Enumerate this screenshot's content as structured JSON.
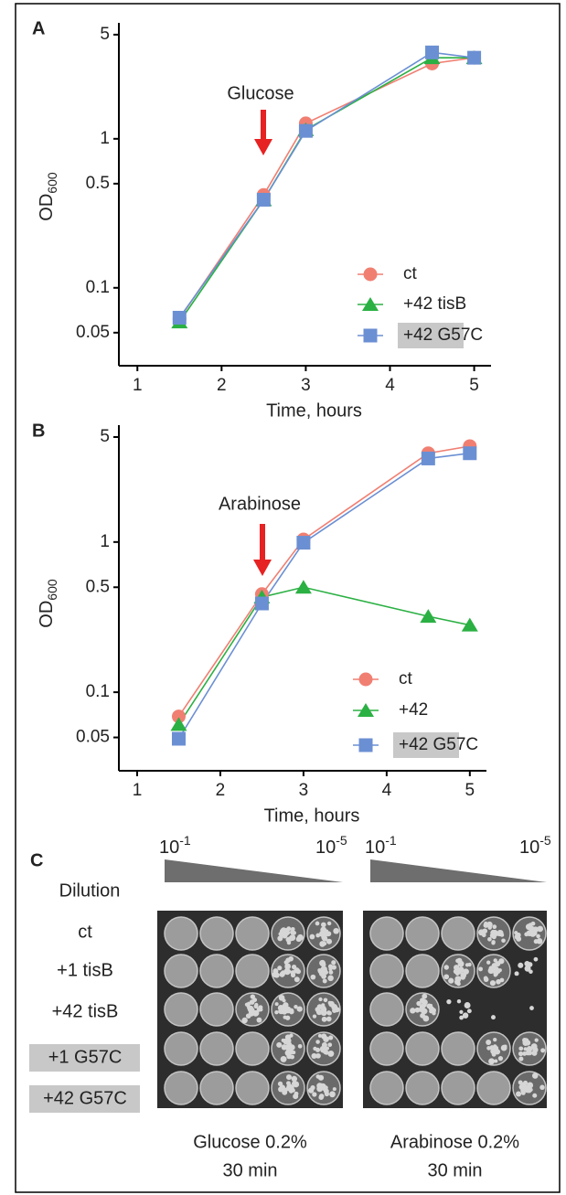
{
  "chart_data": [
    {
      "type": "line",
      "panel_label": "A",
      "annotation": "Glucose",
      "ylabel": {
        "text": "OD",
        "subscript": "600"
      },
      "xlabel": "Time, hours",
      "yscale": "log",
      "ylim": [
        0.03,
        6
      ],
      "yticks": [
        0.05,
        0.1,
        0.5,
        1,
        5
      ],
      "xlim": [
        0.78,
        5.2
      ],
      "xticks": [
        1,
        2,
        3,
        4,
        5
      ],
      "legend": "lower right",
      "series": [
        {
          "name": "ct",
          "color": "#f07f72",
          "marker": "circle",
          "x": [
            1.5,
            2.5,
            3,
            4.5,
            5
          ],
          "values": [
            0.062,
            0.42,
            1.27,
            3.2,
            3.5
          ]
        },
        {
          "name": "+42 tisB",
          "color": "#2bb043",
          "marker": "triangle",
          "x": [
            1.5,
            2.5,
            3,
            4.5,
            5
          ],
          "values": [
            0.059,
            0.39,
            1.15,
            3.5,
            3.5
          ]
        },
        {
          "name": "+42 G57C",
          "color": "#6b8fd3",
          "marker": "square",
          "highlight": true,
          "x": [
            1.5,
            2.5,
            3,
            4.5,
            5
          ],
          "values": [
            0.063,
            0.39,
            1.13,
            3.8,
            3.5
          ]
        }
      ]
    },
    {
      "type": "line",
      "panel_label": "B",
      "annotation": "Arabinose",
      "ylabel": {
        "text": "OD",
        "subscript": "600"
      },
      "xlabel": "Time, hours",
      "yscale": "log",
      "ylim": [
        0.03,
        6
      ],
      "yticks": [
        0.05,
        0.1,
        0.5,
        1,
        5
      ],
      "xlim": [
        0.78,
        5.2
      ],
      "xticks": [
        1,
        2,
        3,
        4,
        5
      ],
      "legend": "lower right",
      "series": [
        {
          "name": "ct",
          "color": "#f07f72",
          "marker": "circle",
          "x": [
            1.5,
            2.5,
            3,
            4.5,
            5
          ],
          "values": [
            0.069,
            0.45,
            1.04,
            3.9,
            4.35
          ]
        },
        {
          "name": "+42",
          "color": "#2bb043",
          "marker": "triangle",
          "x": [
            1.5,
            2.5,
            3,
            4.5,
            5
          ],
          "values": [
            0.061,
            0.43,
            0.5,
            0.32,
            0.28
          ]
        },
        {
          "name": "+42 G57C",
          "color": "#6b8fd3",
          "marker": "square",
          "highlight": true,
          "x": [
            1.5,
            2.5,
            3,
            4.5,
            5
          ],
          "values": [
            0.049,
            0.39,
            0.99,
            3.6,
            3.9
          ]
        }
      ]
    }
  ],
  "panel_c": {
    "label": "C",
    "dilution_label": "Dilution",
    "strains": [
      {
        "name": "ct",
        "highlight": false
      },
      {
        "name": "+1 tisB",
        "highlight": false
      },
      {
        "name": "+42 tisB",
        "highlight": false
      },
      {
        "name": "+1 G57C",
        "highlight": true
      },
      {
        "name": "+42 G57C",
        "highlight": true
      }
    ],
    "plates": [
      {
        "start": {
          "base": "10",
          "exp": "-1"
        },
        "end": {
          "base": "10",
          "exp": "-5"
        },
        "caption": [
          "Glucose 0.2%",
          "30 min"
        ]
      },
      {
        "start": {
          "base": "10",
          "exp": "-1"
        },
        "end": {
          "base": "10",
          "exp": "-5"
        },
        "caption": [
          "Arabinose 0.2%",
          "30 min"
        ]
      }
    ]
  }
}
